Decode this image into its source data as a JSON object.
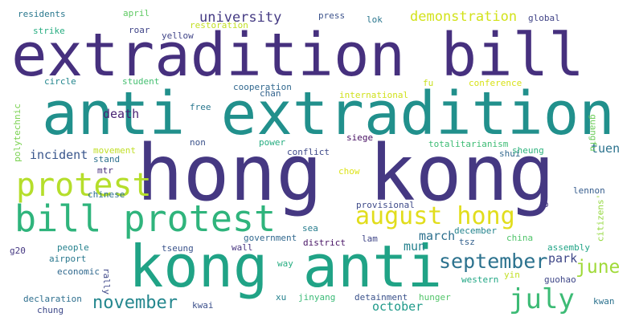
{
  "words": [
    {
      "text": "extradition bill",
      "color": "#46307e"
    },
    {
      "text": "anti extradition",
      "color": "#21908c"
    },
    {
      "text": "hong kong",
      "color": "#453882"
    },
    {
      "text": "kong anti",
      "color": "#20a386"
    },
    {
      "text": "bill protest",
      "color": "#2fb47c"
    },
    {
      "text": "protest",
      "color": "#b5de2b"
    },
    {
      "text": "august hong",
      "color": "#e1dd1c"
    },
    {
      "text": "september",
      "color": "#2c728e"
    },
    {
      "text": "july",
      "color": "#3cbb75"
    },
    {
      "text": "november",
      "color": "#24878e"
    },
    {
      "text": "june",
      "color": "#a0da39"
    },
    {
      "text": "university",
      "color": "#443a83"
    },
    {
      "text": "demonstration",
      "color": "#d2e21b"
    },
    {
      "text": "incident",
      "color": "#39568c"
    },
    {
      "text": "death",
      "color": "#482374"
    },
    {
      "text": "march",
      "color": "#2d708e"
    },
    {
      "text": "tuen",
      "color": "#2c738e"
    },
    {
      "text": "park",
      "color": "#3f4788"
    },
    {
      "text": "mun",
      "color": "#26828e"
    },
    {
      "text": "october",
      "color": "#1f9a8a"
    },
    {
      "text": "residents",
      "color": "#2a788e"
    },
    {
      "text": "april",
      "color": "#5ec962"
    },
    {
      "text": "press",
      "color": "#3b528b"
    },
    {
      "text": "lok",
      "color": "#2a768e"
    },
    {
      "text": "global",
      "color": "#414487"
    },
    {
      "text": "restoration",
      "color": "#c2df23"
    },
    {
      "text": "strike",
      "color": "#27ad81"
    },
    {
      "text": "roar",
      "color": "#404588"
    },
    {
      "text": "yellow",
      "color": "#404588"
    },
    {
      "text": "circle",
      "color": "#24868e"
    },
    {
      "text": "student",
      "color": "#44bf70"
    },
    {
      "text": "cooperation",
      "color": "#31688e"
    },
    {
      "text": "chan",
      "color": "#33638d"
    },
    {
      "text": "international",
      "color": "#d0e11c"
    },
    {
      "text": "fu",
      "color": "#c8e020"
    },
    {
      "text": "conference",
      "color": "#d8e219"
    },
    {
      "text": "polytechnic",
      "color": "#7ad151"
    },
    {
      "text": "free",
      "color": "#2a778e"
    },
    {
      "text": "movement",
      "color": "#c0df25"
    },
    {
      "text": "non",
      "color": "#3b528b"
    },
    {
      "text": "power",
      "color": "#27ad81"
    },
    {
      "text": "siege",
      "color": "#471063"
    },
    {
      "text": "conflict",
      "color": "#3e4989"
    },
    {
      "text": "totalitarianism",
      "color": "#3dbc74"
    },
    {
      "text": "guangfu",
      "color": "#6ccd5a"
    },
    {
      "text": "shui",
      "color": "#31688e"
    },
    {
      "text": "sheung",
      "color": "#2db27d"
    },
    {
      "text": "stand",
      "color": "#2d718e"
    },
    {
      "text": "mtr",
      "color": "#472f7d"
    },
    {
      "text": "chow",
      "color": "#dde318"
    },
    {
      "text": "chinese",
      "color": "#2d708e"
    },
    {
      "text": "lennon",
      "color": "#365d8d"
    },
    {
      "text": "provisional",
      "color": "#3e4a89"
    },
    {
      "text": "o",
      "color": "#453882"
    },
    {
      "text": "citizens'",
      "color": "#95d840"
    },
    {
      "text": "sea",
      "color": "#287d8e"
    },
    {
      "text": "december",
      "color": "#25848e"
    },
    {
      "text": "tsz",
      "color": "#34618d"
    },
    {
      "text": "china",
      "color": "#50c46a"
    },
    {
      "text": "g20",
      "color": "#453882"
    },
    {
      "text": "people",
      "color": "#26828e"
    },
    {
      "text": "government",
      "color": "#31688e"
    },
    {
      "text": "district",
      "color": "#471365"
    },
    {
      "text": "lam",
      "color": "#404688"
    },
    {
      "text": "airport",
      "color": "#2a788e"
    },
    {
      "text": "tseung",
      "color": "#3a538b"
    },
    {
      "text": "wall",
      "color": "#46337f"
    },
    {
      "text": "assembly",
      "color": "#20a486"
    },
    {
      "text": "way",
      "color": "#26ad81"
    },
    {
      "text": "rally",
      "color": "#3f4889"
    },
    {
      "text": "economic",
      "color": "#30698e"
    },
    {
      "text": "yin",
      "color": "#c2df23"
    },
    {
      "text": "western",
      "color": "#22a785"
    },
    {
      "text": "guohao",
      "color": "#3f4788"
    },
    {
      "text": "declaration",
      "color": "#2e6f8e"
    },
    {
      "text": "xu",
      "color": "#26828e"
    },
    {
      "text": "jinyang",
      "color": "#3aba76"
    },
    {
      "text": "detainment",
      "color": "#3b528b"
    },
    {
      "text": "hunger",
      "color": "#52c569"
    },
    {
      "text": "kwai",
      "color": "#3c508b"
    },
    {
      "text": "chung",
      "color": "#3e4989"
    },
    {
      "text": "kwan",
      "color": "#2c728e"
    }
  ]
}
